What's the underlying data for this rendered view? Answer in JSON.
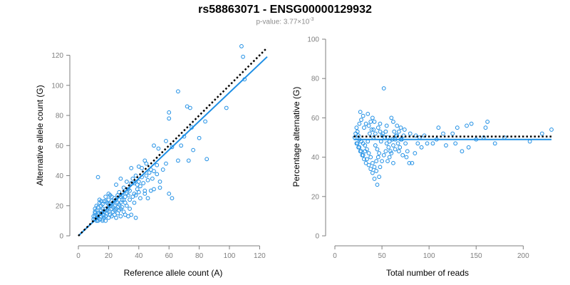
{
  "header": {
    "title": "rs58863071 - ENSG00000129932",
    "pvalue_prefix": "p-value: 3.77×10",
    "pvalue_exponent": "-3"
  },
  "colors": {
    "points": "#1f8fe5",
    "fit_line": "#1f8fe5",
    "reference_line": "#000000",
    "axis": "#7f7f7f"
  },
  "chart_data": [
    {
      "type": "scatter",
      "xlabel": "Reference allele count (A)",
      "ylabel": "Alternative allele count (G)",
      "xlim": [
        0,
        125
      ],
      "ylim": [
        0,
        125
      ],
      "xticks": [
        0,
        20,
        40,
        60,
        80,
        100,
        120
      ],
      "yticks": [
        0,
        20,
        40,
        60,
        80,
        100,
        120
      ],
      "reference_line": {
        "style": "dotted",
        "x": [
          0,
          125
        ],
        "y": [
          0,
          125
        ]
      },
      "fit_line": {
        "style": "solid",
        "x": [
          0,
          125
        ],
        "y": [
          0,
          119
        ]
      },
      "points": [
        [
          108,
          126
        ],
        [
          109,
          119
        ],
        [
          110,
          104
        ],
        [
          66,
          96
        ],
        [
          60,
          82
        ],
        [
          60,
          78
        ],
        [
          72,
          86
        ],
        [
          74,
          85
        ],
        [
          98,
          85
        ],
        [
          84,
          76
        ],
        [
          75,
          72
        ],
        [
          70,
          66
        ],
        [
          80,
          65
        ],
        [
          58,
          63
        ],
        [
          68,
          60
        ],
        [
          62,
          59
        ],
        [
          50,
          60
        ],
        [
          53,
          58
        ],
        [
          76,
          57
        ],
        [
          73,
          50
        ],
        [
          85,
          51
        ],
        [
          66,
          50
        ],
        [
          58,
          48
        ],
        [
          52,
          47
        ],
        [
          44,
          50
        ],
        [
          45,
          48
        ],
        [
          40,
          46
        ],
        [
          35,
          45
        ],
        [
          42,
          45
        ],
        [
          38,
          40
        ],
        [
          36,
          38
        ],
        [
          40,
          36
        ],
        [
          28,
          38
        ],
        [
          32,
          36
        ],
        [
          35,
          35
        ],
        [
          25,
          34
        ],
        [
          30,
          32
        ],
        [
          34,
          30
        ],
        [
          37,
          28
        ],
        [
          44,
          28
        ],
        [
          46,
          25
        ],
        [
          41,
          25
        ],
        [
          48,
          30
        ],
        [
          50,
          31
        ],
        [
          54,
          32
        ],
        [
          60,
          28
        ],
        [
          62,
          25
        ],
        [
          13,
          39
        ],
        [
          20,
          28
        ],
        [
          22,
          26
        ],
        [
          18,
          26
        ],
        [
          26,
          22
        ],
        [
          28,
          26
        ],
        [
          30,
          24
        ],
        [
          32,
          20
        ],
        [
          34,
          18
        ],
        [
          24,
          20
        ],
        [
          20,
          19
        ],
        [
          16,
          21
        ],
        [
          14,
          22
        ],
        [
          12,
          20
        ],
        [
          11,
          18
        ],
        [
          11,
          16
        ],
        [
          12,
          14
        ],
        [
          11,
          13
        ],
        [
          11,
          11
        ],
        [
          12,
          10
        ],
        [
          13,
          12
        ],
        [
          14,
          15
        ],
        [
          14,
          11
        ],
        [
          15,
          13
        ],
        [
          15,
          17
        ],
        [
          16,
          14
        ],
        [
          16,
          11
        ],
        [
          17,
          12
        ],
        [
          17,
          16
        ],
        [
          18,
          18
        ],
        [
          18,
          13
        ],
        [
          19,
          15
        ],
        [
          20,
          12
        ],
        [
          20,
          16
        ],
        [
          21,
          14
        ],
        [
          21,
          20
        ],
        [
          22,
          18
        ],
        [
          22,
          13
        ],
        [
          23,
          16
        ],
        [
          23,
          22
        ],
        [
          24,
          14
        ],
        [
          25,
          18
        ],
        [
          25,
          12
        ],
        [
          26,
          15
        ],
        [
          27,
          17
        ],
        [
          28,
          13
        ],
        [
          29,
          19
        ],
        [
          30,
          16
        ],
        [
          31,
          14
        ],
        [
          33,
          13
        ],
        [
          35,
          14
        ],
        [
          38,
          12
        ],
        [
          12,
          17
        ],
        [
          13,
          19
        ],
        [
          14,
          24
        ],
        [
          15,
          20
        ],
        [
          16,
          18
        ],
        [
          17,
          23
        ],
        [
          19,
          22
        ],
        [
          20,
          24
        ],
        [
          21,
          27
        ],
        [
          22,
          23
        ],
        [
          24,
          25
        ],
        [
          26,
          27
        ],
        [
          27,
          29
        ],
        [
          28,
          22
        ],
        [
          29,
          24
        ],
        [
          31,
          26
        ],
        [
          32,
          28
        ],
        [
          33,
          31
        ],
        [
          34,
          24
        ],
        [
          36,
          26
        ],
        [
          37,
          22
        ],
        [
          38,
          27
        ],
        [
          39,
          31
        ],
        [
          40,
          29
        ],
        [
          41,
          33
        ],
        [
          43,
          35
        ],
        [
          44,
          30
        ],
        [
          45,
          40
        ],
        [
          46,
          37
        ],
        [
          47,
          42
        ],
        [
          48,
          44
        ],
        [
          49,
          38
        ],
        [
          50,
          43
        ],
        [
          52,
          41
        ],
        [
          54,
          36
        ],
        [
          56,
          44
        ],
        [
          42,
          39
        ],
        [
          39,
          34
        ],
        [
          37,
          35
        ],
        [
          33,
          27
        ],
        [
          31,
          22
        ],
        [
          29,
          27
        ],
        [
          27,
          21
        ],
        [
          25,
          24
        ],
        [
          23,
          19
        ],
        [
          19,
          17
        ],
        [
          18,
          23
        ],
        [
          17,
          14
        ],
        [
          15,
          15
        ],
        [
          13,
          15
        ],
        [
          12,
          12
        ],
        [
          11,
          15
        ],
        [
          10,
          13
        ],
        [
          10,
          11
        ],
        [
          13,
          10
        ],
        [
          16,
          10
        ],
        [
          18,
          10
        ],
        [
          15,
          23
        ],
        [
          20,
          21
        ],
        [
          24,
          17
        ],
        [
          26,
          19
        ],
        [
          28,
          18
        ]
      ]
    },
    {
      "type": "scatter",
      "xlabel": "Total number of reads",
      "ylabel": "Percentage alternative (G)",
      "xlim": [
        0,
        230
      ],
      "ylim": [
        0,
        100
      ],
      "xticks": [
        0,
        50,
        100,
        150,
        200
      ],
      "yticks": [
        0,
        20,
        40,
        60,
        80,
        100
      ],
      "reference_line": {
        "style": "dotted",
        "x": [
          20,
          230
        ],
        "y": [
          50.5,
          50.5
        ]
      },
      "fit_line": {
        "style": "solid",
        "x": [
          20,
          230
        ],
        "y": [
          49,
          49
        ]
      },
      "points": [
        [
          52,
          75
        ],
        [
          27,
          63
        ],
        [
          30,
          61
        ],
        [
          35,
          62
        ],
        [
          40,
          60
        ],
        [
          42,
          58
        ],
        [
          48,
          57
        ],
        [
          55,
          56
        ],
        [
          60,
          60
        ],
        [
          62,
          58
        ],
        [
          66,
          56
        ],
        [
          70,
          55
        ],
        [
          74,
          54
        ],
        [
          80,
          52
        ],
        [
          86,
          51
        ],
        [
          90,
          50
        ],
        [
          95,
          51
        ],
        [
          110,
          55
        ],
        [
          115,
          52
        ],
        [
          125,
          52
        ],
        [
          130,
          55
        ],
        [
          140,
          56
        ],
        [
          145,
          57
        ],
        [
          160,
          55
        ],
        [
          162,
          58
        ],
        [
          180,
          50
        ],
        [
          207,
          48
        ],
        [
          220,
          52
        ],
        [
          230,
          54
        ],
        [
          45,
          26
        ],
        [
          47,
          30
        ],
        [
          44,
          33
        ],
        [
          42,
          35
        ],
        [
          40,
          37
        ],
        [
          38,
          40
        ],
        [
          36,
          42
        ],
        [
          34,
          44
        ],
        [
          32,
          46
        ],
        [
          30,
          47
        ],
        [
          28,
          48
        ],
        [
          26,
          49
        ],
        [
          25,
          51
        ],
        [
          24,
          53
        ],
        [
          23,
          55
        ],
        [
          22,
          52
        ],
        [
          21,
          50
        ],
        [
          23,
          47
        ],
        [
          25,
          45
        ],
        [
          27,
          43
        ],
        [
          29,
          41
        ],
        [
          31,
          39
        ],
        [
          33,
          37
        ],
        [
          35,
          48
        ],
        [
          37,
          52
        ],
        [
          39,
          54
        ],
        [
          41,
          50
        ],
        [
          43,
          46
        ],
        [
          45,
          44
        ],
        [
          47,
          42
        ],
        [
          49,
          48
        ],
        [
          51,
          52
        ],
        [
          53,
          50
        ],
        [
          55,
          47
        ],
        [
          57,
          45
        ],
        [
          59,
          43
        ],
        [
          61,
          49
        ],
        [
          63,
          53
        ],
        [
          65,
          51
        ],
        [
          67,
          47
        ],
        [
          69,
          45
        ],
        [
          71,
          49
        ],
        [
          73,
          51
        ],
        [
          75,
          47
        ],
        [
          77,
          43
        ],
        [
          79,
          37
        ],
        [
          82,
          37
        ],
        [
          85,
          42
        ],
        [
          88,
          47
        ],
        [
          92,
          45
        ],
        [
          98,
          47
        ],
        [
          104,
          47
        ],
        [
          108,
          49
        ],
        [
          118,
          46
        ],
        [
          128,
          47
        ],
        [
          135,
          43
        ],
        [
          142,
          45
        ],
        [
          150,
          49
        ],
        [
          158,
          50
        ],
        [
          170,
          47
        ],
        [
          26,
          57
        ],
        [
          28,
          59
        ],
        [
          31,
          55
        ],
        [
          33,
          57
        ],
        [
          36,
          56
        ],
        [
          38,
          58
        ],
        [
          41,
          54
        ],
        [
          43,
          52
        ],
        [
          46,
          55
        ],
        [
          48,
          53
        ],
        [
          50,
          51
        ],
        [
          54,
          53
        ],
        [
          56,
          50
        ],
        [
          58,
          48
        ],
        [
          62,
          46
        ],
        [
          64,
          44
        ],
        [
          68,
          43
        ],
        [
          72,
          41
        ],
        [
          76,
          40
        ],
        [
          24,
          47
        ],
        [
          26,
          45
        ],
        [
          28,
          43
        ],
        [
          30,
          41
        ],
        [
          32,
          43
        ],
        [
          34,
          39
        ],
        [
          36,
          36
        ],
        [
          38,
          34
        ],
        [
          40,
          32
        ],
        [
          42,
          29
        ],
        [
          44,
          38
        ],
        [
          46,
          40
        ],
        [
          48,
          35
        ],
        [
          50,
          38
        ],
        [
          52,
          41
        ],
        [
          54,
          43
        ],
        [
          56,
          38
        ],
        [
          58,
          40
        ],
        [
          60,
          42
        ],
        [
          62,
          37
        ],
        [
          64,
          49
        ],
        [
          66,
          51
        ],
        [
          68,
          53
        ],
        [
          70,
          49
        ]
      ]
    }
  ]
}
